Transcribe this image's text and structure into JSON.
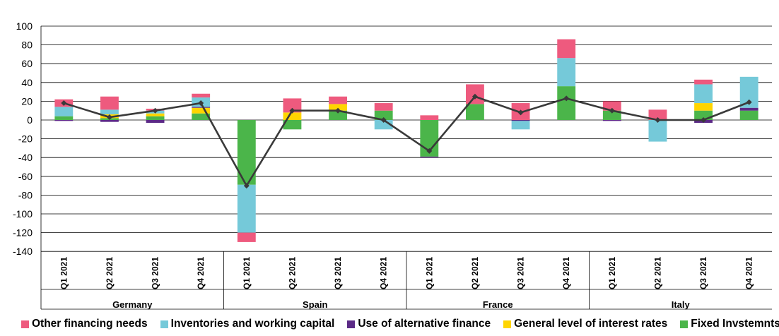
{
  "chart_data": {
    "type": "bar",
    "stacked": true,
    "title": "",
    "xlabel": "",
    "ylabel": "",
    "ylim": [
      -140,
      100
    ],
    "yticks": [
      100,
      80,
      60,
      40,
      20,
      0,
      -20,
      -40,
      -60,
      -80,
      -100,
      -120,
      -140
    ],
    "grid": true,
    "legend_position": "bottom",
    "groups": [
      {
        "name": "Germany",
        "categories": [
          "Q1 2021",
          "Q2 2021",
          "Q3 2021",
          "Q4 2021"
        ]
      },
      {
        "name": "Spain",
        "categories": [
          "Q1 2021",
          "Q2 2021",
          "Q3 2021",
          "Q4 2021"
        ]
      },
      {
        "name": "France",
        "categories": [
          "Q1 2021",
          "Q2 2021",
          "Q3 2021",
          "Q4 2021"
        ]
      },
      {
        "name": "Italy",
        "categories": [
          "Q1 2021",
          "Q2 2021",
          "Q3 2021",
          "Q4 2021"
        ]
      }
    ],
    "series": [
      {
        "name": "Fixed Invstemnts",
        "color": "#4bb54a",
        "values": [
          4,
          2,
          4,
          7,
          -69,
          -10,
          10,
          10,
          -39,
          17,
          0,
          36,
          10,
          0,
          10,
          10
        ]
      },
      {
        "name": "General level of interest rates",
        "color": "#ffd500",
        "values": [
          0,
          4,
          3,
          6,
          0,
          8,
          7,
          0,
          0,
          0,
          0,
          0,
          0,
          0,
          8,
          0
        ]
      },
      {
        "name": "Use of alternative finance",
        "color": "#5b2a86",
        "values": [
          -1,
          -2,
          -3,
          1,
          0,
          0,
          0,
          0,
          -1,
          0,
          -1,
          0,
          -1,
          0,
          -3,
          3
        ]
      },
      {
        "name": "Inventories and working capital",
        "color": "#75c9d9",
        "values": [
          10,
          5,
          3,
          10,
          -51,
          0,
          0,
          -10,
          0,
          0,
          -9,
          30,
          0,
          -23,
          20,
          33
        ]
      },
      {
        "name": "Other financing needs",
        "color": "#ee5a7e",
        "values": [
          8,
          14,
          2,
          4,
          -10,
          15,
          8,
          8,
          5,
          21,
          18,
          20,
          10,
          11,
          5,
          0
        ]
      }
    ],
    "legend_order": [
      "Other financing needs",
      "Inventories and working capital",
      "Use of alternative finance",
      "General level of interest rates",
      "Fixed Invstemnts"
    ],
    "line": {
      "color": "#3a3a3a",
      "values": [
        18,
        3,
        10,
        18,
        -70,
        10,
        10,
        0,
        -33,
        25,
        8,
        23,
        10,
        0,
        0,
        19
      ]
    }
  }
}
